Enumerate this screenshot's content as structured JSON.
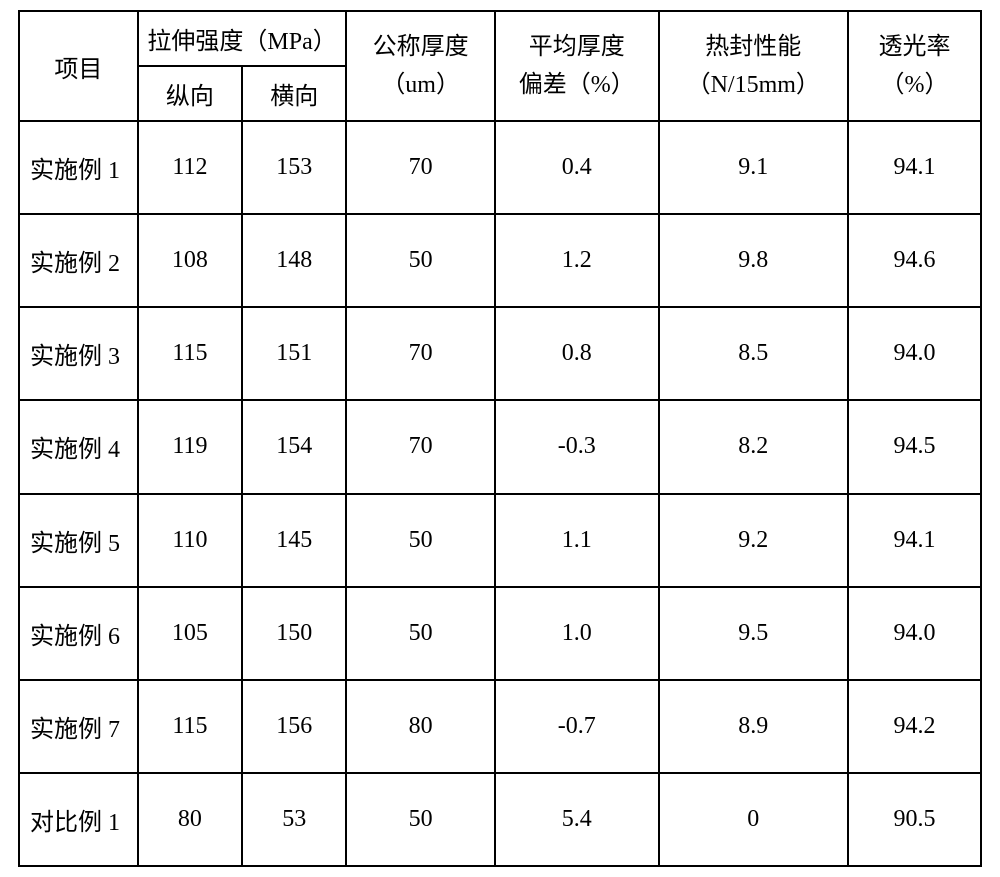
{
  "table": {
    "headers": {
      "col0": "项目",
      "tensile_strength": "拉伸强度（MPa）",
      "tensile_md": "纵向",
      "tensile_td": "横向",
      "nominal_thickness_l1": "公称厚度",
      "nominal_thickness_l2": "（um）",
      "avg_thickness_dev_l1": "平均厚度",
      "avg_thickness_dev_l2": "偏差（%）",
      "heat_seal_l1": "热封性能",
      "heat_seal_l2": "（N/15mm）",
      "light_trans_l1": "透光率",
      "light_trans_l2": "（%）"
    },
    "rows": [
      {
        "label": "实施例 1",
        "md": "112",
        "td": "153",
        "thickness": "70",
        "deviation": "0.4",
        "heat_seal": "9.1",
        "light": "94.1"
      },
      {
        "label": "实施例 2",
        "md": "108",
        "td": "148",
        "thickness": "50",
        "deviation": "1.2",
        "heat_seal": "9.8",
        "light": "94.6"
      },
      {
        "label": "实施例 3",
        "md": "115",
        "td": "151",
        "thickness": "70",
        "deviation": "0.8",
        "heat_seal": "8.5",
        "light": "94.0"
      },
      {
        "label": "实施例 4",
        "md": "119",
        "td": "154",
        "thickness": "70",
        "deviation": "-0.3",
        "heat_seal": "8.2",
        "light": "94.5"
      },
      {
        "label": "实施例 5",
        "md": "110",
        "td": "145",
        "thickness": "50",
        "deviation": "1.1",
        "heat_seal": "9.2",
        "light": "94.1"
      },
      {
        "label": "实施例 6",
        "md": "105",
        "td": "150",
        "thickness": "50",
        "deviation": "1.0",
        "heat_seal": "9.5",
        "light": "94.0"
      },
      {
        "label": "实施例 7",
        "md": "115",
        "td": "156",
        "thickness": "80",
        "deviation": "-0.7",
        "heat_seal": "8.9",
        "light": "94.2"
      },
      {
        "label": "对比例 1",
        "md": "80",
        "td": "53",
        "thickness": "50",
        "deviation": "5.4",
        "heat_seal": "0",
        "light": "90.5"
      }
    ],
    "styling": {
      "border_color": "#000000",
      "border_width": 2,
      "background_color": "#ffffff",
      "text_color": "#000000",
      "font_family": "SimSun",
      "font_size": 24,
      "header_row_height": 55,
      "data_row_height": 93,
      "column_widths_pct": [
        11.6,
        10.2,
        10.2,
        14.5,
        16.0,
        18.5,
        13.0
      ]
    }
  }
}
